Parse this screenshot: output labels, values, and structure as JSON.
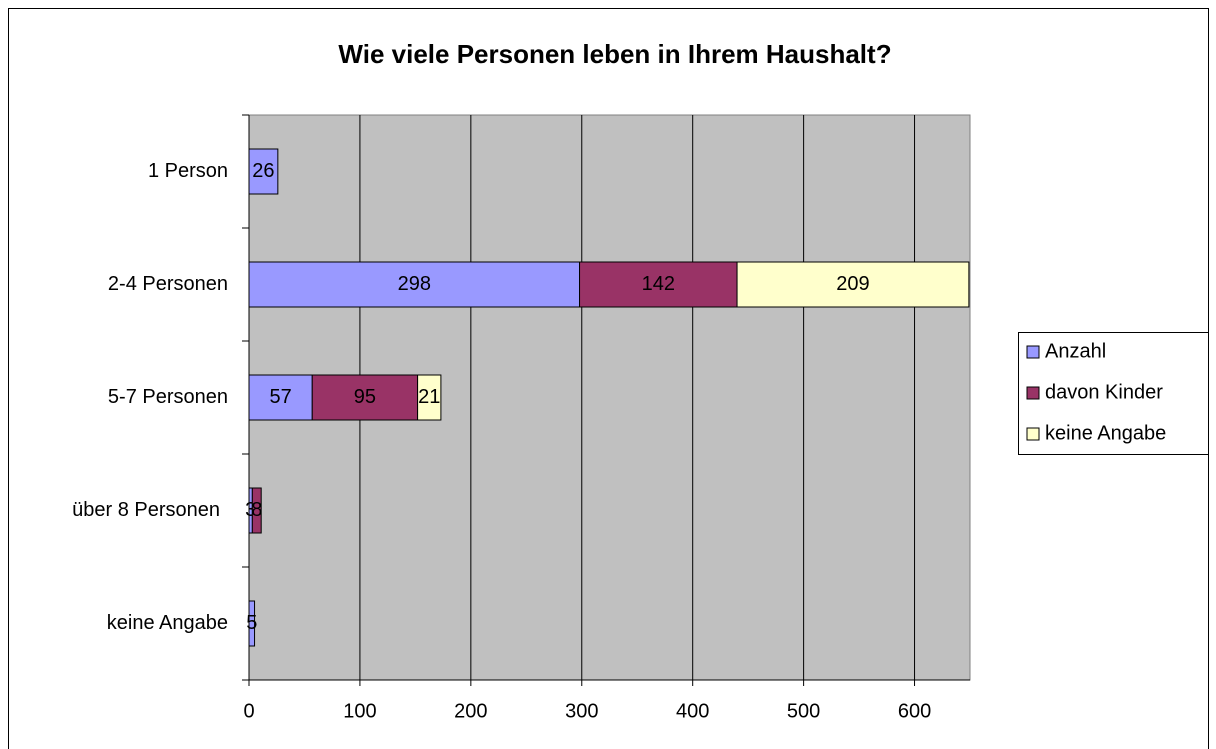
{
  "chart_data": {
    "type": "stacked_bar_horizontal",
    "title": "Wie viele Personen leben in Ihrem Haushalt?",
    "categories": [
      "1 Person",
      "2-4 Personen",
      "5-7 Personen",
      "über 8 Personen",
      "keine Angabe"
    ],
    "series": [
      {
        "name": "Anzahl",
        "color": "#9999ff",
        "values": [
          26,
          298,
          57,
          3,
          5
        ]
      },
      {
        "name": "davon Kinder",
        "color": "#993366",
        "values": [
          null,
          142,
          95,
          8,
          null
        ]
      },
      {
        "name": "keine Angabe",
        "color": "#ffffcc",
        "values": [
          null,
          209,
          21,
          null,
          null
        ]
      }
    ],
    "xlim": [
      0,
      650
    ],
    "xticks": [
      0,
      100,
      200,
      300,
      400,
      500,
      600
    ],
    "grid": true,
    "legend": "right"
  }
}
